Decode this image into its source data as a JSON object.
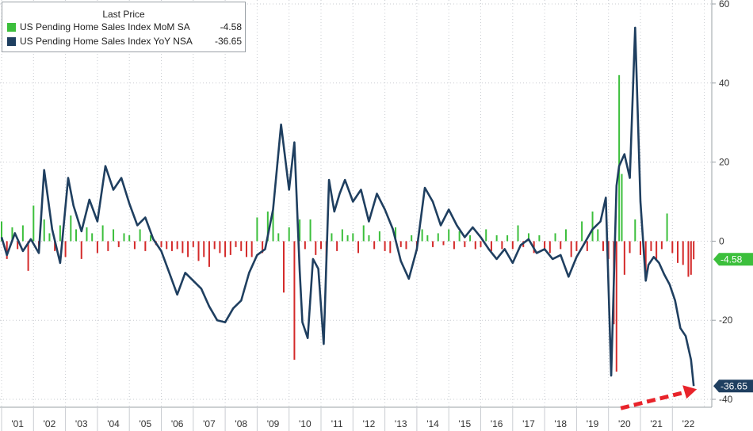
{
  "chart_data": {
    "type": "line",
    "legend": {
      "heading": "Last Price",
      "placement": "top-left"
    },
    "series": [
      {
        "name": "US Pending Home Sales Index MoM SA",
        "last_price": "-4.58",
        "marker_label": "-4.58",
        "color": "#3cbf3c",
        "negative_color": "#d42a2a",
        "style": "bars",
        "x": [
          "2001-01",
          "2001-03",
          "2001-05",
          "2001-07",
          "2001-09",
          "2001-11",
          "2002-01",
          "2002-03",
          "2002-05",
          "2002-07",
          "2002-09",
          "2002-11",
          "2003-01",
          "2003-03",
          "2003-05",
          "2003-07",
          "2003-09",
          "2003-11",
          "2004-01",
          "2004-03",
          "2004-05",
          "2004-07",
          "2004-09",
          "2004-11",
          "2005-01",
          "2005-03",
          "2005-05",
          "2005-07",
          "2005-09",
          "2005-11",
          "2006-01",
          "2006-03",
          "2006-05",
          "2006-07",
          "2006-09",
          "2006-11",
          "2007-01",
          "2007-03",
          "2007-05",
          "2007-07",
          "2007-09",
          "2007-11",
          "2008-01",
          "2008-03",
          "2008-05",
          "2008-07",
          "2008-09",
          "2008-11",
          "2009-01",
          "2009-03",
          "2009-05",
          "2009-07",
          "2009-09",
          "2009-11",
          "2010-01",
          "2010-03",
          "2010-05",
          "2010-07",
          "2010-09",
          "2010-11",
          "2011-01",
          "2011-03",
          "2011-05",
          "2011-07",
          "2011-09",
          "2011-11",
          "2012-01",
          "2012-03",
          "2012-05",
          "2012-07",
          "2012-09",
          "2012-11",
          "2013-01",
          "2013-03",
          "2013-05",
          "2013-07",
          "2013-09",
          "2013-11",
          "2014-01",
          "2014-03",
          "2014-05",
          "2014-07",
          "2014-09",
          "2014-11",
          "2015-01",
          "2015-03",
          "2015-05",
          "2015-07",
          "2015-09",
          "2015-11",
          "2016-01",
          "2016-03",
          "2016-05",
          "2016-07",
          "2016-09",
          "2016-11",
          "2017-01",
          "2017-03",
          "2017-05",
          "2017-07",
          "2017-09",
          "2017-11",
          "2018-01",
          "2018-03",
          "2018-05",
          "2018-07",
          "2018-09",
          "2018-11",
          "2019-01",
          "2019-03",
          "2019-05",
          "2019-07",
          "2019-09",
          "2019-11",
          "2020-01",
          "2020-03",
          "2020-04",
          "2020-05",
          "2020-06",
          "2020-07",
          "2020-09",
          "2020-11",
          "2021-01",
          "2021-03",
          "2021-05",
          "2021-07",
          "2021-09",
          "2021-11",
          "2022-01",
          "2022-03",
          "2022-05",
          "2022-07",
          "2022-08",
          "2022-09"
        ],
        "values": [
          5.0,
          -4.5,
          3.5,
          -2.0,
          4.0,
          -7.5,
          9.0,
          -3.0,
          5.5,
          2.0,
          -2.5,
          4.0,
          -4.0,
          6.5,
          3.0,
          -4.5,
          3.5,
          2.0,
          -3.0,
          4.0,
          -2.5,
          3.0,
          -1.5,
          2.0,
          1.5,
          -2.0,
          3.0,
          -2.5,
          1.5,
          -1.0,
          -1.5,
          -2.0,
          -2.5,
          -2.0,
          -3.0,
          -4.0,
          -1.5,
          -5.0,
          -4.0,
          -6.5,
          -2.0,
          -3.0,
          -4.0,
          -3.5,
          -1.5,
          -2.5,
          -4.0,
          -4.0,
          6.0,
          -3.0,
          7.5,
          8.0,
          2.0,
          -13.0,
          3.5,
          -30.0,
          5.5,
          -2.0,
          5.5,
          -3.5,
          -2.0,
          -4.5,
          2.0,
          -2.5,
          3.0,
          1.5,
          2.0,
          -3.0,
          4.0,
          1.5,
          -2.0,
          2.5,
          -2.5,
          -3.0,
          3.5,
          -1.5,
          -2.0,
          1.5,
          -2.5,
          3.0,
          1.5,
          -1.5,
          2.0,
          -1.0,
          3.0,
          -2.0,
          2.5,
          -1.5,
          1.5,
          -2.0,
          -1.5,
          3.0,
          -2.5,
          1.5,
          -2.0,
          1.5,
          -2.0,
          4.0,
          -1.5,
          2.0,
          -3.0,
          1.5,
          -2.0,
          -3.0,
          2.0,
          -2.0,
          3.0,
          -4.0,
          -2.5,
          5.0,
          -2.5,
          7.5,
          3.0,
          -2.5,
          -4.5,
          -21.0,
          -33.0,
          42.0,
          17.0,
          -8.5,
          -3.0,
          5.5,
          -3.5,
          -8.0,
          -2.5,
          -4.5,
          -2.0,
          7.0,
          -3.0,
          -5.5,
          -6.0,
          -9.0,
          -8.5,
          -4.58
        ]
      },
      {
        "name": "US Pending Home Sales Index YoY NSA",
        "last_price": "-36.65",
        "marker_label": "-36.65",
        "color": "#1f3f60",
        "style": "line",
        "x": [
          "2001-01",
          "2001-03",
          "2001-06",
          "2001-09",
          "2001-12",
          "2002-03",
          "2002-05",
          "2002-08",
          "2002-11",
          "2003-02",
          "2003-04",
          "2003-07",
          "2003-10",
          "2004-01",
          "2004-04",
          "2004-07",
          "2004-10",
          "2005-01",
          "2005-04",
          "2005-07",
          "2005-10",
          "2006-01",
          "2006-04",
          "2006-07",
          "2006-10",
          "2007-01",
          "2007-04",
          "2007-07",
          "2007-10",
          "2008-01",
          "2008-04",
          "2008-07",
          "2008-10",
          "2009-01",
          "2009-04",
          "2009-07",
          "2009-10",
          "2010-01",
          "2010-03",
          "2010-05",
          "2010-06",
          "2010-08",
          "2010-10",
          "2010-12",
          "2011-02",
          "2011-04",
          "2011-06",
          "2011-08",
          "2011-10",
          "2012-01",
          "2012-04",
          "2012-07",
          "2012-10",
          "2013-01",
          "2013-04",
          "2013-07",
          "2013-10",
          "2014-01",
          "2014-04",
          "2014-07",
          "2014-10",
          "2015-01",
          "2015-04",
          "2015-07",
          "2015-10",
          "2016-01",
          "2016-04",
          "2016-07",
          "2016-10",
          "2017-01",
          "2017-04",
          "2017-07",
          "2017-10",
          "2018-01",
          "2018-04",
          "2018-07",
          "2018-10",
          "2019-01",
          "2019-04",
          "2019-07",
          "2019-10",
          "2019-12",
          "2020-02",
          "2020-04",
          "2020-05",
          "2020-07",
          "2020-09",
          "2020-11",
          "2021-01",
          "2021-03",
          "2021-04",
          "2021-06",
          "2021-08",
          "2021-10",
          "2021-12",
          "2022-02",
          "2022-04",
          "2022-06",
          "2022-08",
          "2022-09"
        ],
        "values": [
          1.0,
          -3.5,
          2.0,
          -2.5,
          0.5,
          -3.0,
          18.0,
          3.0,
          -5.5,
          16.0,
          9.0,
          2.5,
          10.5,
          5.0,
          19.0,
          13.0,
          16.0,
          9.5,
          4.0,
          6.0,
          0.5,
          -2.5,
          -8.0,
          -13.5,
          -8.0,
          -10.0,
          -12.0,
          -16.5,
          -20.0,
          -20.5,
          -17.0,
          -15.0,
          -8.0,
          -3.5,
          -2.0,
          8.0,
          29.5,
          13.0,
          25.0,
          -7.5,
          -20.5,
          -24.5,
          -4.5,
          -7.0,
          -26.0,
          15.5,
          7.5,
          12.0,
          15.5,
          10.0,
          13.0,
          5.0,
          12.0,
          8.0,
          3.0,
          -5.0,
          -9.5,
          -2.0,
          13.5,
          10.0,
          4.0,
          8.0,
          4.0,
          1.0,
          3.5,
          1.0,
          -2.0,
          -4.5,
          -2.0,
          -5.5,
          -1.0,
          0.5,
          -3.0,
          -2.0,
          -4.5,
          -3.5,
          -9.0,
          -4.0,
          -0.5,
          3.0,
          5.0,
          11.0,
          -34.0,
          14.0,
          19.0,
          22.0,
          16.0,
          54.0,
          10.0,
          -10.0,
          -6.0,
          -4.0,
          -5.5,
          -8.5,
          -11.0,
          -15.0,
          -22.0,
          -24.0,
          -30.0,
          -36.65
        ]
      }
    ],
    "x_ticks": [
      "'01",
      "'02",
      "'03",
      "'04",
      "'05",
      "'06",
      "'07",
      "'08",
      "'09",
      "'10",
      "'11",
      "'12",
      "'13",
      "'14",
      "'15",
      "'16",
      "'17",
      "'18",
      "'19",
      "'20",
      "'21",
      "'22"
    ],
    "y_ticks": [
      "60",
      "40",
      "20",
      "0",
      "-20",
      "-40"
    ],
    "y_axis_side": "right",
    "ylim": [
      -42,
      61
    ],
    "grid": true,
    "annotation": {
      "type": "arrow",
      "color": "#e8232a",
      "style": "dashed",
      "points_to": "-36.65"
    }
  }
}
